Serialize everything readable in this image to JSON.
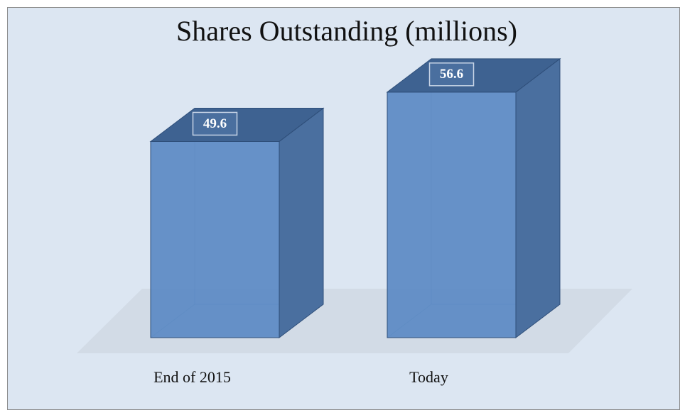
{
  "chart_data": {
    "type": "bar3d",
    "title": "Shares Outstanding (millions)",
    "categories": [
      "End of 2015",
      "Today"
    ],
    "values": [
      49.6,
      56.6
    ],
    "color": "#5b8ac4",
    "ylim": [
      21.8,
      60
    ]
  }
}
